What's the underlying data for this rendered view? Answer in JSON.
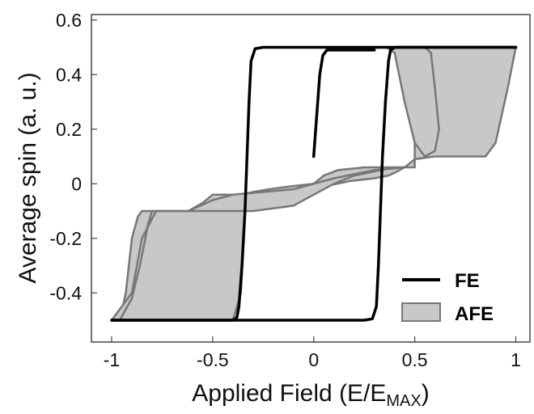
{
  "chart_data": {
    "type": "line",
    "xlabel": "Applied Field (E/E",
    "xlabel_sub": "MAX",
    "xlabel_close": ")",
    "ylabel": "Average spin (a. u.)",
    "xlim": [
      -1.1,
      1.07
    ],
    "ylim": [
      -0.58,
      0.62
    ],
    "x_ticks": [
      -1,
      -0.5,
      0,
      0.5,
      1
    ],
    "x_tick_labels": [
      "-1",
      "-0.5",
      "0",
      "0.5",
      "1"
    ],
    "y_ticks": [
      -0.4,
      -0.2,
      0,
      0.2,
      0.4,
      0.6
    ],
    "y_tick_labels": [
      "-0.4",
      "-0.2",
      "0",
      "0.2",
      "0.4",
      "0.6"
    ],
    "grid": false,
    "legend_position": "bottom-right",
    "legend": [
      {
        "label": "FE",
        "style": "line",
        "color": "#000000"
      },
      {
        "label": "AFE",
        "style": "fill",
        "color": "#c8c8c8",
        "edge": "#777777"
      }
    ],
    "series": [
      {
        "name": "FE",
        "color": "#000000",
        "paths": [
          [
            [
              -1.0,
              -0.5
            ],
            [
              -0.4,
              -0.5
            ],
            [
              -0.38,
              -0.49
            ],
            [
              -0.37,
              -0.45
            ],
            [
              -0.355,
              -0.3
            ],
            [
              -0.34,
              -0.1
            ],
            [
              -0.33,
              0.1
            ],
            [
              -0.32,
              0.3
            ],
            [
              -0.31,
              0.45
            ],
            [
              -0.29,
              0.495
            ],
            [
              -0.25,
              0.5
            ],
            [
              1.0,
              0.5
            ]
          ],
          [
            [
              1.0,
              0.5
            ],
            [
              0.4,
              0.5
            ],
            [
              0.38,
              0.49
            ],
            [
              0.37,
              0.45
            ],
            [
              0.355,
              0.3
            ],
            [
              0.34,
              0.1
            ],
            [
              0.33,
              -0.1
            ],
            [
              0.32,
              -0.3
            ],
            [
              0.31,
              -0.45
            ],
            [
              0.29,
              -0.495
            ],
            [
              0.25,
              -0.5
            ],
            [
              -1.0,
              -0.5
            ]
          ],
          [
            [
              0.0,
              0.1
            ],
            [
              0.01,
              0.2
            ],
            [
              0.02,
              0.3
            ],
            [
              0.03,
              0.4
            ],
            [
              0.045,
              0.47
            ],
            [
              0.065,
              0.49
            ],
            [
              0.3,
              0.49
            ]
          ]
        ]
      },
      {
        "name": "AFE",
        "type": "area",
        "color": "#c8c8c8",
        "edge": "#777777",
        "bands": [
          [
            [
              -0.96,
              -0.5
            ],
            [
              -0.93,
              -0.4
            ],
            [
              -0.9,
              -0.2
            ],
            [
              -0.87,
              -0.12
            ],
            [
              -0.85,
              -0.1
            ],
            [
              -0.72,
              -0.1
            ],
            [
              -0.62,
              -0.1
            ],
            [
              -0.55,
              -0.07
            ],
            [
              -0.5,
              -0.04
            ],
            [
              -0.36,
              -0.04
            ],
            [
              -0.3,
              -0.03
            ],
            [
              -0.22,
              -0.02
            ],
            [
              -0.12,
              -0.01
            ],
            [
              0.0,
              0.0
            ],
            [
              0.05,
              0.03
            ],
            [
              0.12,
              0.05
            ],
            [
              0.25,
              0.06
            ],
            [
              0.5,
              0.06
            ],
            [
              0.5,
              0.48
            ],
            [
              0.55,
              0.5
            ],
            [
              1.0,
              0.5
            ],
            [
              0.96,
              0.35
            ],
            [
              0.9,
              0.15
            ],
            [
              0.85,
              0.1
            ],
            [
              0.6,
              0.1
            ],
            [
              0.5,
              0.09
            ],
            [
              0.45,
              0.06
            ],
            [
              0.4,
              0.04
            ],
            [
              0.37,
              0.03
            ],
            [
              0.3,
              0.02
            ],
            [
              0.18,
              0.01
            ],
            [
              0.05,
              -0.01
            ],
            [
              0.0,
              -0.03
            ],
            [
              -0.03,
              -0.05
            ],
            [
              -0.1,
              -0.08
            ],
            [
              -0.2,
              -0.09
            ],
            [
              -0.34,
              -0.1
            ],
            [
              -0.36,
              -0.4
            ],
            [
              -0.4,
              -0.5
            ]
          ],
          [
            [
              -1.0,
              -0.5
            ],
            [
              -0.96,
              -0.5
            ],
            [
              -0.9,
              -0.42
            ],
            [
              -0.86,
              -0.3
            ],
            [
              -0.82,
              -0.15
            ],
            [
              -0.8,
              -0.1
            ],
            [
              -0.62,
              -0.1
            ],
            [
              -0.5,
              -0.06
            ],
            [
              -0.4,
              -0.04
            ],
            [
              -0.1,
              -0.02
            ],
            [
              0.1,
              0.02
            ],
            [
              0.3,
              0.05
            ],
            [
              0.45,
              0.06
            ],
            [
              0.4,
              0.06
            ],
            [
              0.2,
              0.03
            ],
            [
              0.1,
              0.0
            ],
            [
              0.0,
              -0.04
            ],
            [
              -0.1,
              -0.08
            ],
            [
              -0.3,
              -0.1
            ],
            [
              -0.42,
              -0.1
            ],
            [
              -0.55,
              -0.1
            ],
            [
              -0.78,
              -0.1
            ],
            [
              -0.85,
              -0.2
            ],
            [
              -0.9,
              -0.4
            ]
          ],
          [
            [
              0.36,
              0.5
            ],
            [
              0.4,
              0.48
            ],
            [
              0.45,
              0.3
            ],
            [
              0.5,
              0.15
            ],
            [
              0.55,
              0.1
            ],
            [
              0.6,
              0.12
            ],
            [
              0.62,
              0.2
            ],
            [
              0.6,
              0.35
            ],
            [
              0.58,
              0.48
            ],
            [
              0.55,
              0.5
            ]
          ]
        ]
      }
    ]
  }
}
